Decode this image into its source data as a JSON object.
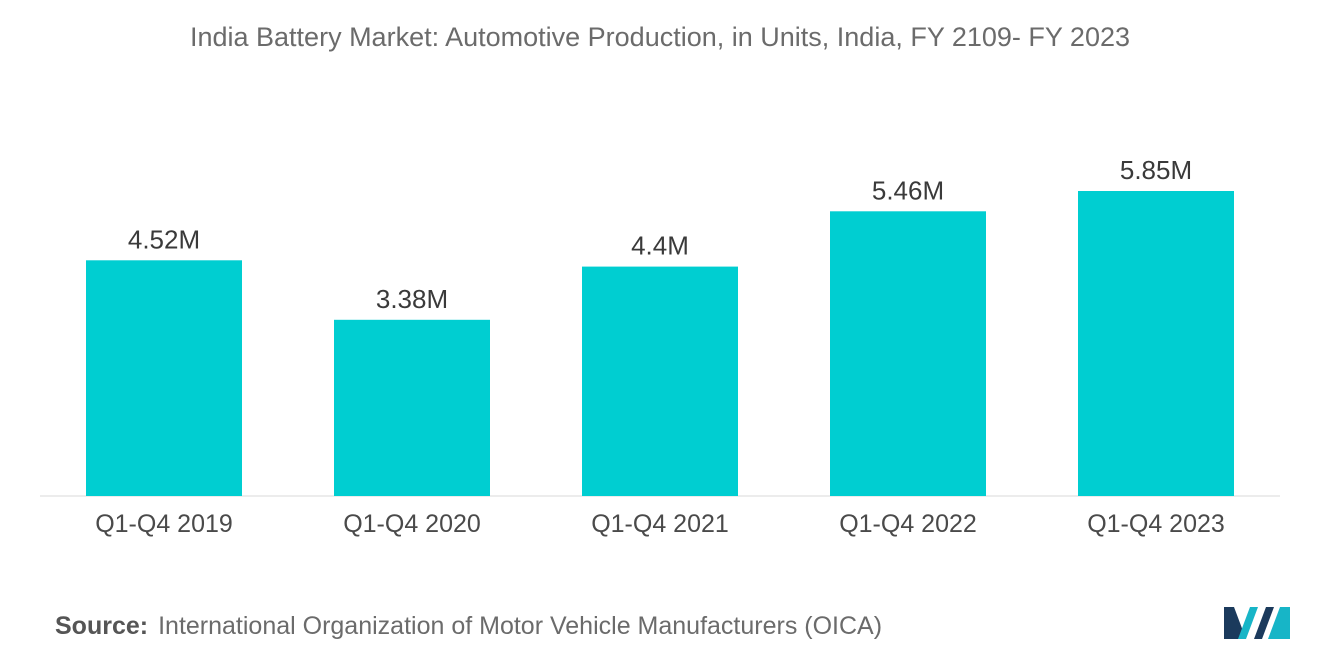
{
  "header": {
    "title": "India Battery Market: Automotive Production, in Units, India, FY 2109- FY 2023"
  },
  "chart_data": {
    "type": "bar",
    "title": "India Battery Market: Automotive Production, in Units, India, FY 2109- FY 2023",
    "categories": [
      "Q1-Q4 2019",
      "Q1-Q4 2020",
      "Q1-Q4 2021",
      "Q1-Q4 2022",
      "Q1-Q4 2023"
    ],
    "values": [
      4.52,
      3.38,
      4.4,
      5.46,
      5.85
    ],
    "value_labels": [
      "4.52M",
      "3.38M",
      "4.4M",
      "5.46M",
      "5.85M"
    ],
    "units": "million units",
    "xlabel": "",
    "ylabel": "",
    "ylim": [
      0,
      5.85
    ],
    "grid": false,
    "legend": "none",
    "bar_color": "#00ced1"
  },
  "footer": {
    "source_label": "Source:",
    "source_text": "International Organization of Motor Vehicle Manufacturers (OICA)"
  },
  "logo": {
    "icon": "mordor-intelligence-logo-icon",
    "colors": [
      "#1b3a5c",
      "#17b5c7"
    ]
  }
}
